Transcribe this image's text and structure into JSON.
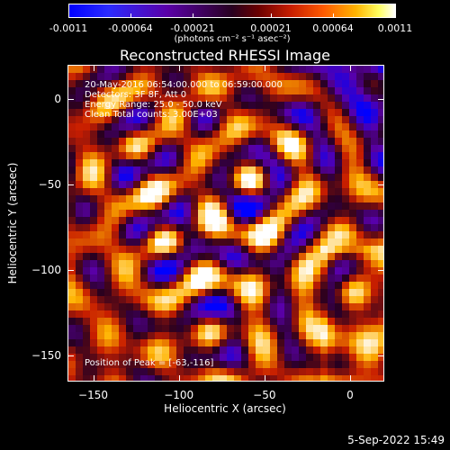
{
  "colorbar": {
    "tick_labels": [
      "-0.0011",
      "-0.00064",
      "-0.00021",
      "0.00021",
      "0.00064",
      "0.0011"
    ],
    "units": "(photons cm⁻² s⁻¹ asec⁻²)",
    "stops": [
      "#0000ff",
      "#5a00a8",
      "#280020",
      "#c81e00",
      "#ffb400",
      "#ffffff"
    ]
  },
  "plot": {
    "title": "Reconstructed RHESSI Image",
    "info_lines": [
      "20-May-2016 06:54:00.000 to 06:59:00.000",
      "Detectors: 3F 8F, Att 0",
      "Energy Range: 25.0 - 50.0 keV",
      "Clean     Total counts: 3.00E+03"
    ],
    "peak_text": "Position of Peak = [-63,-116]"
  },
  "chart_data": {
    "type": "heatmap",
    "title": "Reconstructed RHESSI Image",
    "xlabel": "Heliocentric X (arcsec)",
    "ylabel": "Heliocentric Y (arcsec)",
    "xlim": [
      -165,
      20
    ],
    "ylim": [
      -165,
      20
    ],
    "x_ticks": [
      -150,
      -100,
      -50,
      0
    ],
    "y_ticks": [
      0,
      -50,
      -100,
      -150
    ],
    "x_tick_labels": [
      "−150",
      "−100",
      "−50",
      "0"
    ],
    "y_tick_labels": [
      "0",
      "−50",
      "−100",
      "−150"
    ],
    "colorbar_range": [
      -0.0011,
      0.0011
    ],
    "peak_position": [
      -63,
      -116
    ]
  },
  "footer": {
    "date": "5-Sep-2022 15:49"
  }
}
